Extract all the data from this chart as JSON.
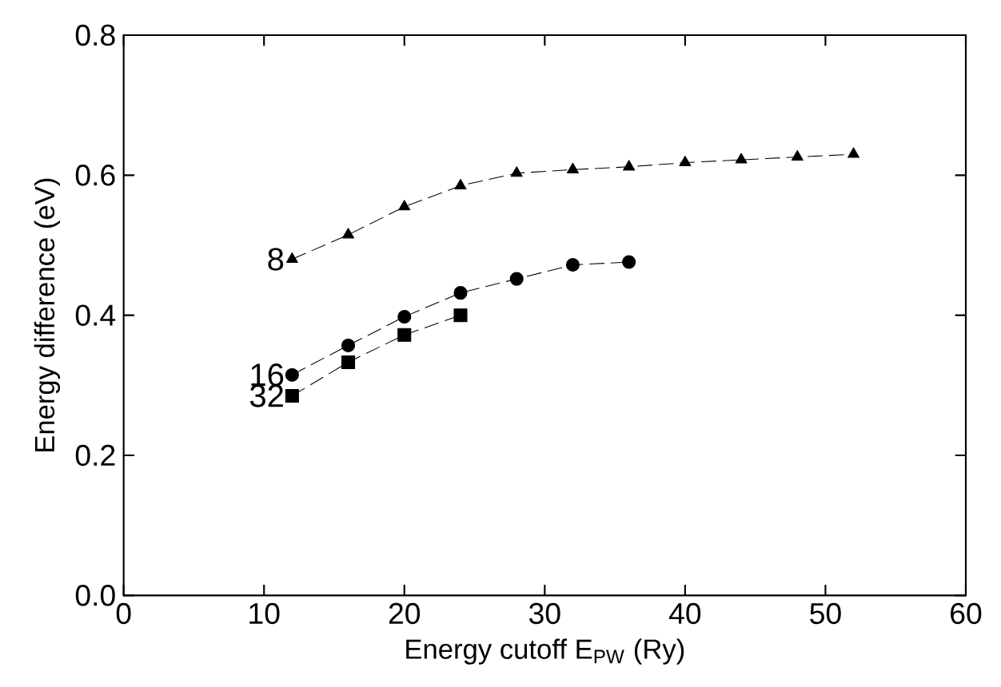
{
  "chart_data": {
    "type": "line",
    "xlabel": "Energy cutoff E$_{PW}$ (Ry)",
    "ylabel": "Energy difference (eV)",
    "xlim": [
      0,
      60
    ],
    "xticks": [
      0,
      10,
      20,
      30,
      40,
      50,
      60
    ],
    "ylim": [
      0,
      0.8
    ],
    "yticks": [
      {
        "value": 0,
        "label": "0.0"
      },
      0.2,
      0.4,
      0.6,
      0.8
    ],
    "line_style": "dashed",
    "legend": false,
    "grid": false,
    "series": [
      {
        "name": "8",
        "color": "#000000",
        "marker": "triangle",
        "x": [
          12,
          16,
          20,
          24,
          28,
          32,
          36,
          40,
          44,
          48,
          52
        ],
        "values": [
          0.48,
          0.515,
          0.555,
          0.585,
          0.603,
          0.608,
          0.612,
          0.618,
          0.622,
          0.626,
          0.63
        ]
      },
      {
        "name": "16",
        "color": "#000000",
        "marker": "circle",
        "x": [
          12,
          16,
          20,
          24,
          28,
          32,
          36
        ],
        "values": [
          0.315,
          0.357,
          0.398,
          0.432,
          0.452,
          0.472,
          0.476
        ]
      },
      {
        "name": "32",
        "color": "#000000",
        "marker": "square",
        "x": [
          12,
          16,
          20,
          24
        ],
        "values": [
          0.285,
          0.333,
          0.372,
          0.4
        ]
      }
    ]
  }
}
